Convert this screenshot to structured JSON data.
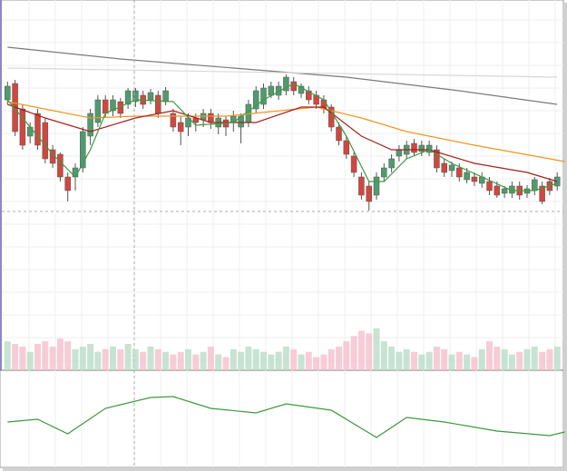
{
  "chart_data": [
    {
      "type": "candlestick",
      "xlim": [
        -1,
        74.3
      ],
      "ylim": [
        0,
        350
      ],
      "up_color": "#4f9b70",
      "down_color": "#d1473f",
      "wick_color": "#555555",
      "open": [
        240,
        258,
        230,
        200,
        225,
        215,
        185,
        180,
        155,
        155,
        165,
        200,
        215,
        240,
        228,
        238,
        235,
        238,
        245,
        240,
        245,
        238,
        225,
        215,
        210,
        220,
        218,
        225,
        210,
        218,
        215,
        210,
        215,
        230,
        235,
        245,
        245,
        250,
        260,
        247,
        250,
        245,
        240,
        232,
        210,
        195,
        178,
        155,
        145,
        135,
        155,
        165,
        178,
        180,
        192,
        183,
        182,
        185,
        170,
        162,
        165,
        152,
        155,
        148,
        150,
        145,
        137,
        137,
        145,
        137,
        140,
        145,
        150,
        145
      ],
      "high": [
        260,
        262,
        235,
        215,
        230,
        220,
        190,
        182,
        160,
        170,
        210,
        230,
        245,
        245,
        245,
        242,
        253,
        253,
        250,
        252,
        250,
        254,
        230,
        222,
        225,
        225,
        230,
        230,
        225,
        222,
        228,
        225,
        240,
        255,
        258,
        260,
        260,
        268,
        265,
        258,
        255,
        250,
        245,
        235,
        215,
        200,
        182,
        160,
        150,
        160,
        170,
        180,
        190,
        195,
        197,
        195,
        195,
        190,
        175,
        172,
        170,
        165,
        160,
        160,
        155,
        150,
        145,
        150,
        150,
        146,
        155,
        150,
        154,
        160
      ],
      "low": [
        235,
        200,
        185,
        192,
        185,
        170,
        165,
        150,
        128,
        140,
        160,
        190,
        210,
        220,
        222,
        220,
        230,
        232,
        230,
        235,
        220,
        234,
        205,
        190,
        200,
        205,
        210,
        208,
        202,
        200,
        205,
        192,
        210,
        225,
        230,
        242,
        240,
        245,
        245,
        242,
        235,
        230,
        225,
        205,
        190,
        175,
        155,
        130,
        118,
        130,
        150,
        160,
        172,
        175,
        178,
        178,
        178,
        160,
        155,
        155,
        150,
        148,
        145,
        143,
        135,
        132,
        132,
        132,
        130,
        132,
        135,
        125,
        135,
        140
      ],
      "close": [
        255,
        205,
        190,
        210,
        190,
        175,
        170,
        155,
        140,
        165,
        205,
        225,
        240,
        225,
        240,
        225,
        250,
        250,
        235,
        248,
        225,
        250,
        210,
        205,
        220,
        215,
        225,
        215,
        220,
        210,
        222,
        222,
        235,
        250,
        253,
        255,
        255,
        265,
        250,
        255,
        240,
        235,
        230,
        210,
        195,
        180,
        160,
        135,
        128,
        155,
        165,
        175,
        185,
        190,
        182,
        190,
        190,
        165,
        160,
        168,
        155,
        160,
        150,
        155,
        140,
        135,
        142,
        145,
        135,
        142,
        152,
        128,
        140,
        155
      ],
      "series": [
        {
          "color": "#7a7a7a",
          "x": [
            0,
            15,
            30,
            45,
            60,
            73
          ],
          "values": [
            298,
            285,
            275,
            265,
            250,
            235
          ]
        },
        {
          "color": "#d8d8d8",
          "x": [
            0,
            73
          ],
          "values": [
            275,
            265
          ]
        },
        {
          "color": "#f0961e",
          "x": [
            0,
            11,
            17,
            29,
            41,
            47,
            53,
            62,
            74
          ],
          "values": [
            238,
            220,
            222,
            222,
            232,
            220,
            205,
            190,
            172
          ]
        },
        {
          "color": "#a8201a",
          "x": [
            0,
            5,
            11,
            17,
            22,
            27,
            33,
            39,
            42,
            47,
            51,
            56,
            62,
            69,
            73
          ],
          "values": [
            235,
            220,
            205,
            220,
            228,
            215,
            215,
            232,
            232,
            200,
            185,
            185,
            170,
            160,
            150
          ]
        },
        {
          "color": "#3d9a3d",
          "x": [
            0,
            3,
            6,
            9,
            11,
            13,
            17,
            22,
            25,
            30,
            34,
            38,
            42,
            45,
            48,
            50,
            53,
            56,
            59,
            63,
            67,
            70,
            73
          ],
          "values": [
            240,
            210,
            180,
            155,
            185,
            225,
            240,
            238,
            212,
            215,
            240,
            258,
            240,
            200,
            150,
            150,
            175,
            185,
            170,
            155,
            140,
            140,
            148
          ]
        }
      ]
    },
    {
      "type": "bar",
      "xlim": [
        -1,
        74.3
      ],
      "ylim": [
        0,
        100
      ],
      "up_color": "#b9dcc8",
      "down_color": "#f5bfcd",
      "values": [
        55,
        50,
        45,
        35,
        50,
        55,
        45,
        60,
        55,
        40,
        45,
        50,
        35,
        40,
        45,
        40,
        50,
        40,
        35,
        45,
        40,
        35,
        30,
        35,
        40,
        30,
        35,
        45,
        30,
        25,
        40,
        35,
        45,
        40,
        35,
        30,
        35,
        45,
        40,
        30,
        35,
        25,
        30,
        40,
        45,
        55,
        65,
        75,
        70,
        80,
        55,
        45,
        35,
        40,
        35,
        30,
        35,
        45,
        40,
        30,
        35,
        30,
        25,
        40,
        55,
        45,
        40,
        30,
        35,
        40,
        45,
        35,
        40,
        45
      ]
    },
    {
      "type": "line",
      "xlim": [
        -1,
        74.3
      ],
      "ylim": [
        0,
        107
      ],
      "color": "#3d9a3d",
      "x": [
        0,
        4,
        8,
        13,
        19,
        22,
        27,
        33,
        37,
        43,
        49,
        53,
        58,
        65,
        72,
        74
      ],
      "values": [
        50,
        53,
        37,
        65,
        77,
        78,
        65,
        60,
        70,
        63,
        33,
        55,
        50,
        40,
        35,
        39
      ]
    }
  ]
}
